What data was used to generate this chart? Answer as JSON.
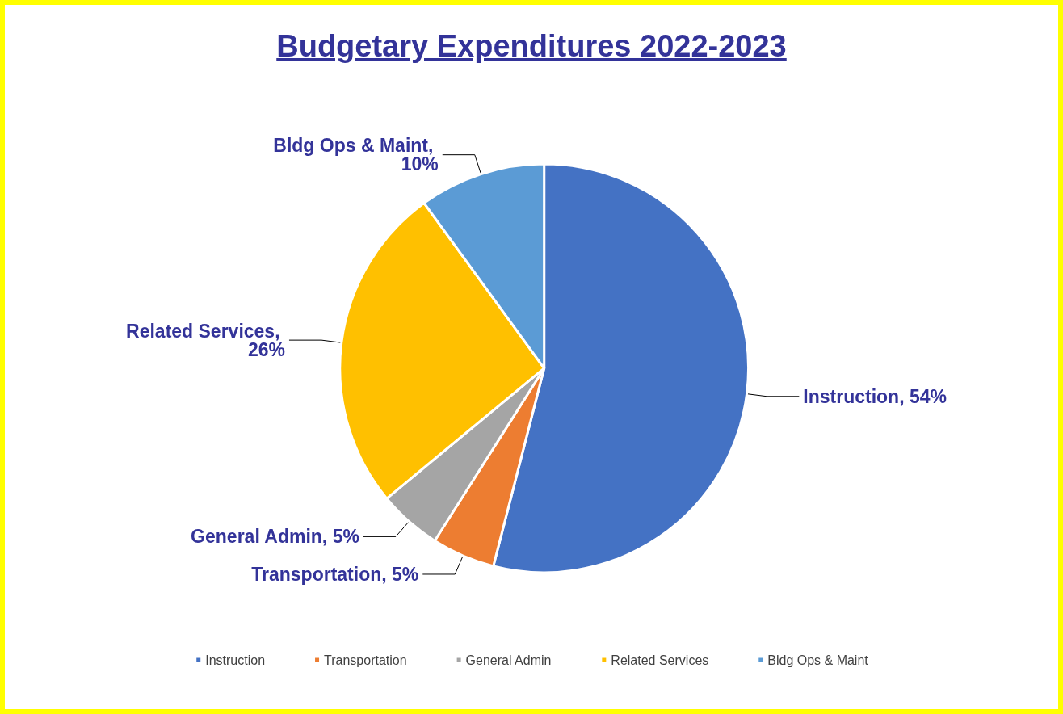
{
  "chart_data": {
    "type": "pie",
    "title": "Budgetary Expenditures 2022-2023",
    "categories": [
      "Instruction",
      "Transportation",
      "General Admin",
      "Related Services",
      "Bldg Ops & Maint"
    ],
    "values": [
      54,
      5,
      5,
      26,
      10
    ],
    "colors": [
      "#4472c4",
      "#ed7d31",
      "#a5a5a5",
      "#ffc000",
      "#5b9bd5"
    ],
    "value_labels": [
      "Instruction, 54%",
      "Transportation, 5%",
      "General Admin, 5%",
      "Related Services, 26%",
      "Bldg Ops & Maint, 10%"
    ],
    "legend": "bottom"
  }
}
